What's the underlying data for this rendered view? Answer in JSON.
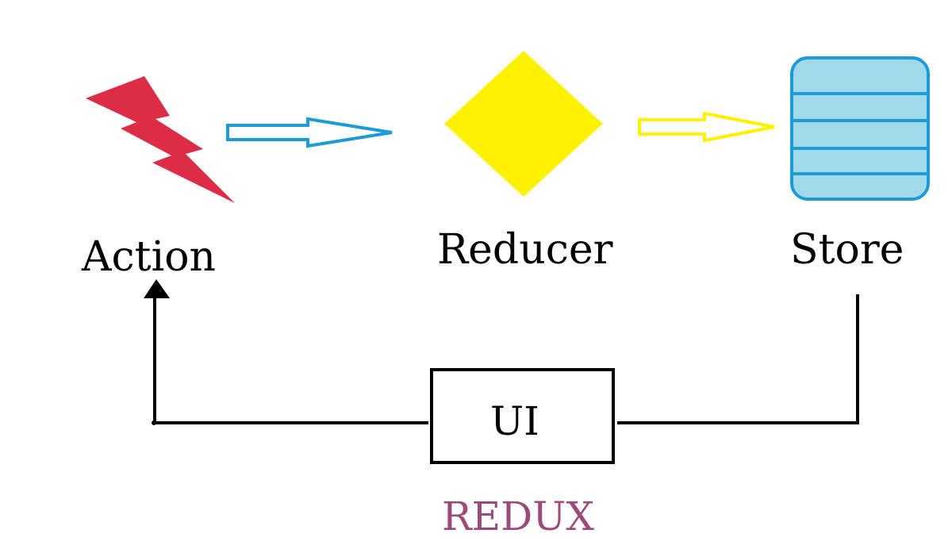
{
  "diagram": {
    "nodes": {
      "action": {
        "label": "Action",
        "icon": "lightning-bolt-icon",
        "color": "#dd2c45"
      },
      "reducer": {
        "label": "Reducer",
        "icon": "diamond-icon",
        "color": "#fff200"
      },
      "store": {
        "label": "Store",
        "icon": "database-table-icon",
        "color": "#9fd9ea",
        "border_color": "#1e9ad6"
      },
      "ui": {
        "label": "UI"
      }
    },
    "edges": [
      {
        "from": "Action",
        "to": "Reducer",
        "color": "#1e9ad6"
      },
      {
        "from": "Reducer",
        "to": "Store",
        "color": "#fff200"
      },
      {
        "from": "Store",
        "to": "UI",
        "color": "#000000"
      },
      {
        "from": "UI",
        "to": "Action",
        "color": "#000000"
      }
    ],
    "title": {
      "text": "REDUX",
      "color": "#9c4a7b"
    }
  }
}
